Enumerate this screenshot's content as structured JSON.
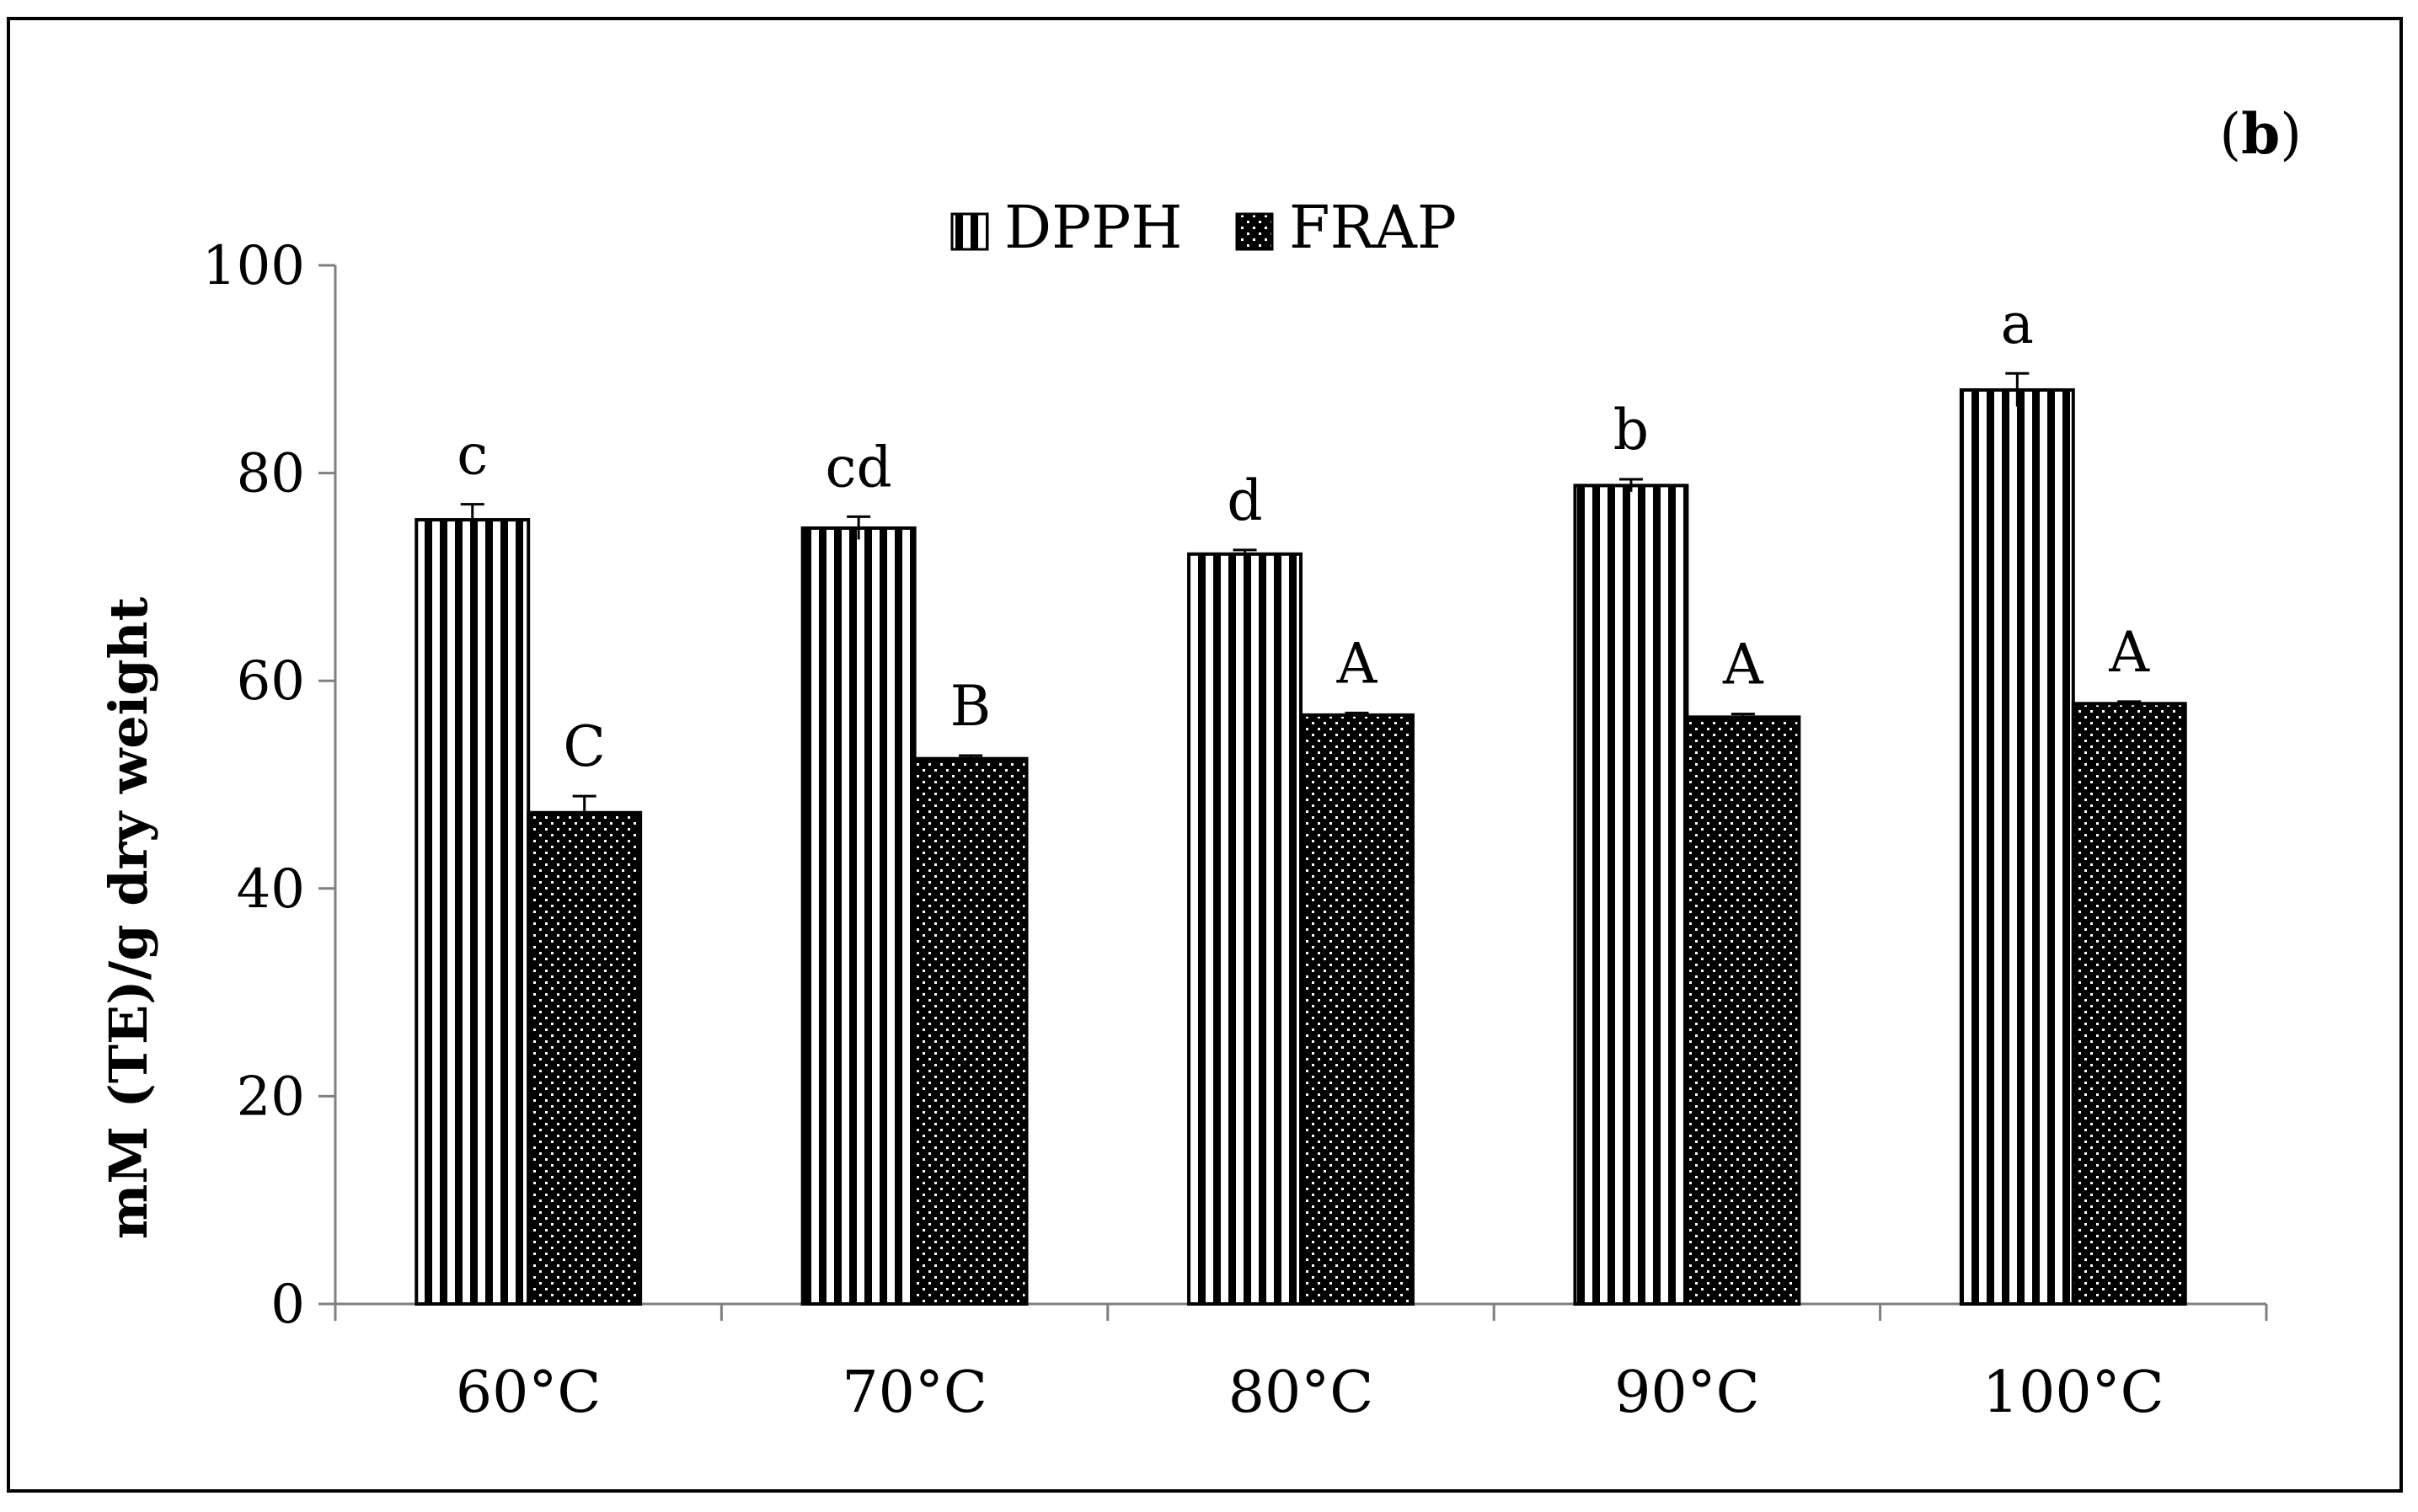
{
  "chart_data": {
    "type": "bar",
    "panel_label_open": "(",
    "panel_label": "b",
    "panel_label_close": ")",
    "title": "",
    "xlabel": "",
    "ylabel": "mM (TE)/g dry weight",
    "ylim": [
      0,
      100
    ],
    "yticks": [
      0,
      20,
      40,
      60,
      80,
      100
    ],
    "grid": false,
    "legend_position": "top-center",
    "categories": [
      "60°C",
      "70°C",
      "80°C",
      "90°C",
      "100°C"
    ],
    "series": [
      {
        "name": "DPPH",
        "pattern": "vertical-stripes",
        "values": [
          75.5,
          74.7,
          72.2,
          78.8,
          88.0
        ],
        "errors": [
          1.5,
          1.1,
          0.4,
          0.6,
          1.6
        ],
        "significance": [
          "c",
          "cd",
          "d",
          "b",
          "a"
        ]
      },
      {
        "name": "FRAP",
        "pattern": "dotted",
        "values": [
          47.3,
          52.5,
          56.7,
          56.5,
          57.8
        ],
        "errors": [
          1.6,
          0.3,
          0.2,
          0.3,
          0.2
        ],
        "significance": [
          "C",
          "B",
          "A",
          "A",
          "A"
        ]
      }
    ]
  }
}
